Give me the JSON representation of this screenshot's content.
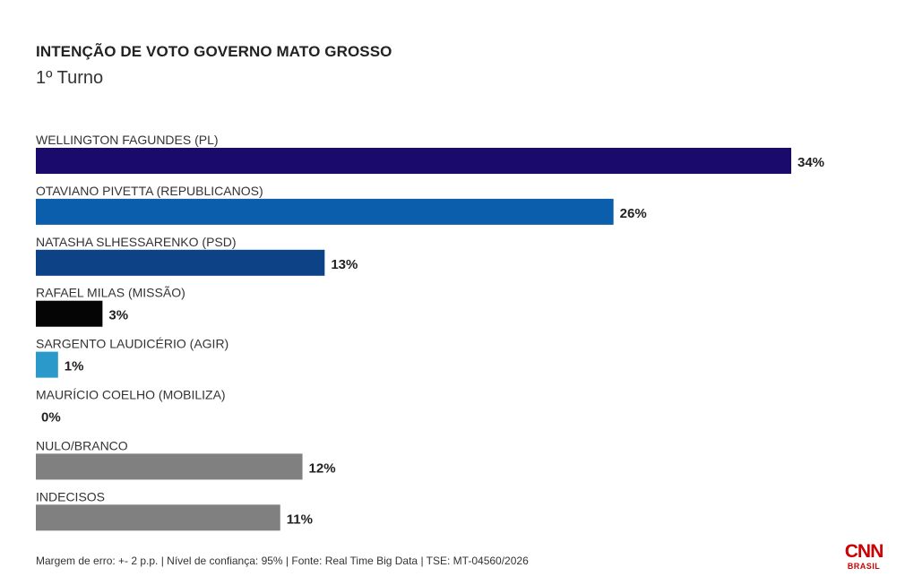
{
  "chart_data": {
    "type": "bar",
    "orientation": "horizontal",
    "title": "INTENÇÃO DE VOTO GOVERNO MATO GROSSO",
    "subtitle": "1º Turno",
    "categories": [
      "WELLINGTON FAGUNDES (PL)",
      "OTAVIANO PIVETTA (REPUBLICANOS)",
      "NATASHA SLHESSARENKO (PSD)",
      "RAFAEL MILAS (MISSÃO)",
      "SARGENTO LAUDICÉRIO (AGIR)",
      "MAURÍCIO COELHO (MOBILIZA)",
      "NULO/BRANCO",
      "INDECISOS"
    ],
    "values": [
      34,
      26,
      13,
      3,
      1,
      0,
      12,
      11
    ],
    "value_labels": [
      "34%",
      "26%",
      "13%",
      "3%",
      "1%",
      "0%",
      "12%",
      "11%"
    ],
    "colors": [
      "#1a0a6b",
      "#0a5eab",
      "#0d4287",
      "#050505",
      "#2b99c9",
      "#2b99c9",
      "#808080",
      "#808080"
    ],
    "xlim": [
      0,
      34
    ],
    "grid": false,
    "legend": "none",
    "xlabel": "",
    "ylabel": ""
  },
  "footer": {
    "note": "Margem de erro: +- 2 p.p. | Nível de confiança: 95% | Fonte: Real Time Big Data | TSE: MT-04560/2026"
  },
  "logo": {
    "main": "CNN",
    "sub": "BRASIL",
    "color": "#cc0000"
  }
}
